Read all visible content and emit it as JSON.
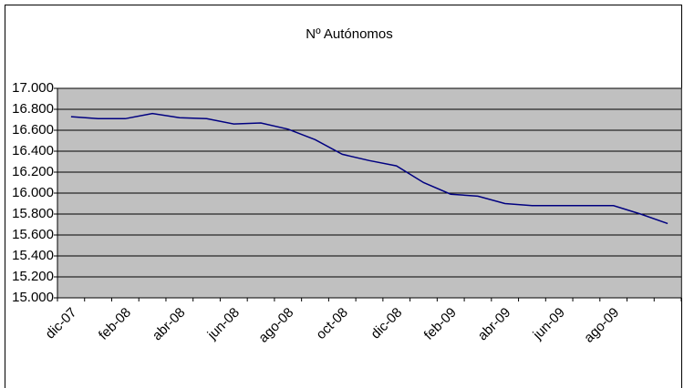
{
  "chart_data": {
    "type": "line",
    "title": "Nº Autónomos",
    "categories": [
      "dic-07",
      null,
      "feb-08",
      null,
      "abr-08",
      null,
      "jun-08",
      null,
      "ago-08",
      null,
      "oct-08",
      null,
      "dic-08",
      null,
      "feb-09",
      null,
      "abr-09",
      null,
      "jun-09",
      null,
      "ago-09",
      null,
      null
    ],
    "series": [
      {
        "name": "Nº Autónomos",
        "color": "#000080",
        "values": [
          16730,
          16710,
          16710,
          16760,
          16720,
          16710,
          16660,
          16670,
          16610,
          16510,
          16370,
          16310,
          16260,
          16100,
          15990,
          15970,
          15900,
          15880,
          15880,
          15880,
          15880,
          15800,
          15710
        ]
      }
    ],
    "ylim": [
      15000,
      17000
    ],
    "yticks": [
      {
        "value": 15000,
        "label": "15.000"
      },
      {
        "value": 15200,
        "label": "15.200"
      },
      {
        "value": 15400,
        "label": "15.400"
      },
      {
        "value": 15600,
        "label": "15.600"
      },
      {
        "value": 15800,
        "label": "15.800"
      },
      {
        "value": 16000,
        "label": "16.000"
      },
      {
        "value": 16200,
        "label": "16.200"
      },
      {
        "value": 16400,
        "label": "16.400"
      },
      {
        "value": 16600,
        "label": "16.600"
      },
      {
        "value": 16800,
        "label": "16.800"
      },
      {
        "value": 17000,
        "label": "17.000"
      }
    ],
    "grid": true,
    "plot_background": "#c0c0c0"
  }
}
